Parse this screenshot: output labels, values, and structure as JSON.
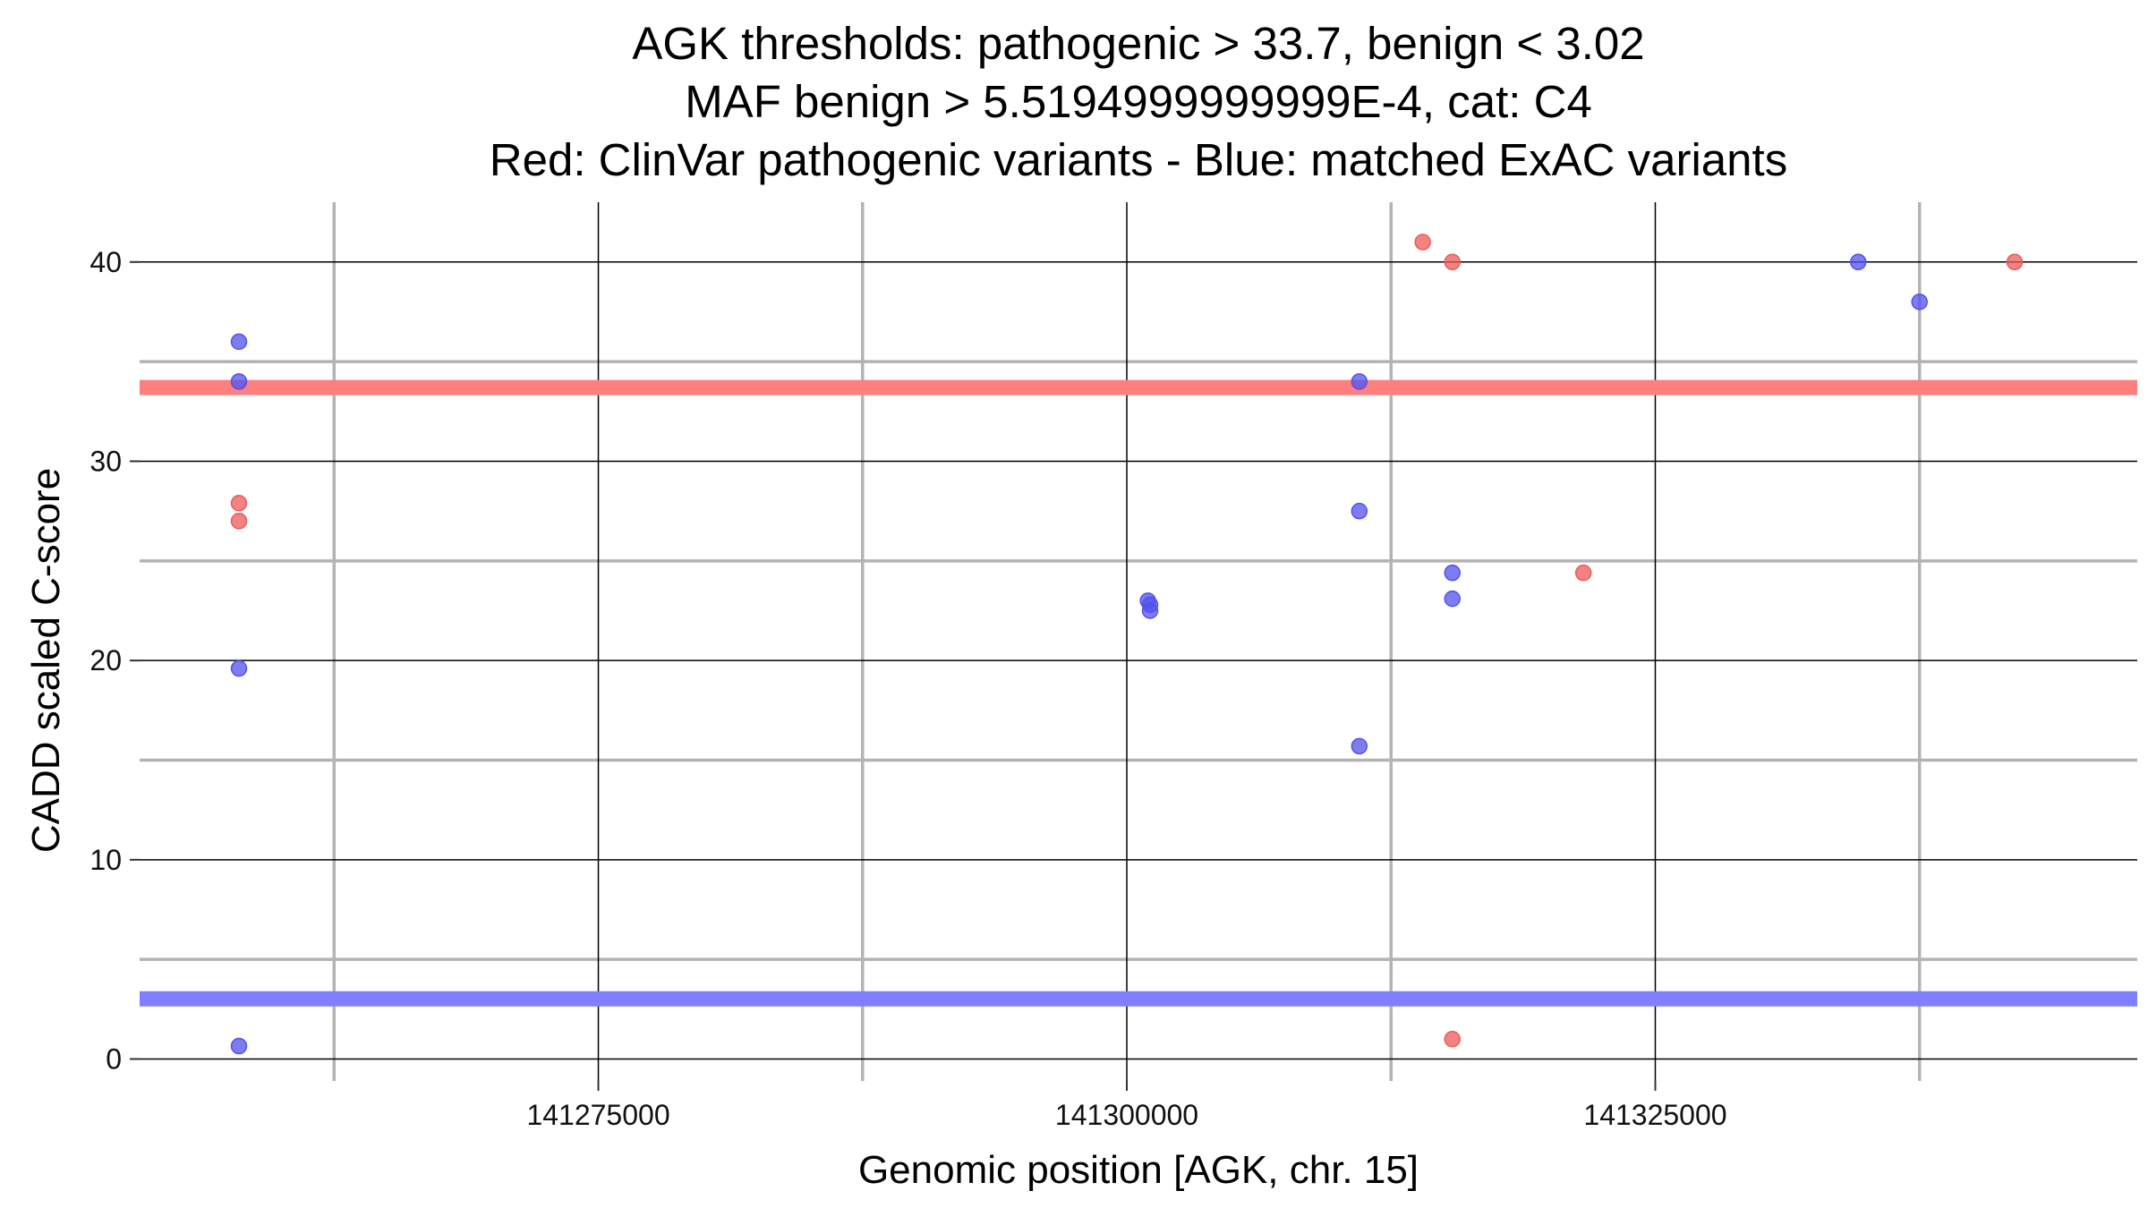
{
  "chart_data": {
    "type": "scatter",
    "title_lines": [
      "AGK thresholds: pathogenic > 33.7, benign < 3.02",
      "MAF benign > 5.5194999999999E-4, cat: C4",
      "Red: ClinVar pathogenic variants - Blue: matched ExAC variants"
    ],
    "xlabel": "Genomic position [AGK, chr. 15]",
    "ylabel": "CADD scaled C-score",
    "xlim": [
      141253300,
      141347800
    ],
    "ylim": [
      -1.1,
      43.0
    ],
    "x_ticks": [
      141275000,
      141300000,
      141325000
    ],
    "x_tick_labels": [
      "141275000",
      "141300000",
      "141325000"
    ],
    "x_minor_grid": [
      141262500,
      141287500,
      141312500,
      141337500
    ],
    "y_ticks": [
      0,
      10,
      20,
      30,
      40
    ],
    "y_tick_labels": [
      "0",
      "10",
      "20",
      "30",
      "40"
    ],
    "y_minor_grid": [
      5,
      15,
      25,
      35
    ],
    "grid": true,
    "thresholds": [
      {
        "name": "pathogenic",
        "value": 33.7,
        "color": "#ff7f7f"
      },
      {
        "name": "benign",
        "value": 3.02,
        "color": "#7f7fff"
      }
    ],
    "series": [
      {
        "color": "#ee5a5a",
        "points": [
          {
            "x": 141258000,
            "y": 27.9
          },
          {
            "x": 141258000,
            "y": 27.0
          },
          {
            "x": 141314000,
            "y": 41.0
          },
          {
            "x": 141315400,
            "y": 40.0
          },
          {
            "x": 141315400,
            "y": 1.0
          },
          {
            "x": 141321600,
            "y": 24.4
          },
          {
            "x": 141342000,
            "y": 40.0
          }
        ]
      },
      {
        "color": "#5252ee",
        "points": [
          {
            "x": 141258000,
            "y": 36.0
          },
          {
            "x": 141258000,
            "y": 34.0
          },
          {
            "x": 141258000,
            "y": 19.6
          },
          {
            "x": 141258000,
            "y": 0.65
          },
          {
            "x": 141301000,
            "y": 23.0
          },
          {
            "x": 141301100,
            "y": 22.8
          },
          {
            "x": 141301100,
            "y": 22.5
          },
          {
            "x": 141311000,
            "y": 34.0
          },
          {
            "x": 141311000,
            "y": 27.5
          },
          {
            "x": 141311000,
            "y": 15.7
          },
          {
            "x": 141315400,
            "y": 24.4
          },
          {
            "x": 141315400,
            "y": 23.1
          },
          {
            "x": 141334600,
            "y": 40.0
          },
          {
            "x": 141337500,
            "y": 38.0
          }
        ]
      }
    ]
  }
}
